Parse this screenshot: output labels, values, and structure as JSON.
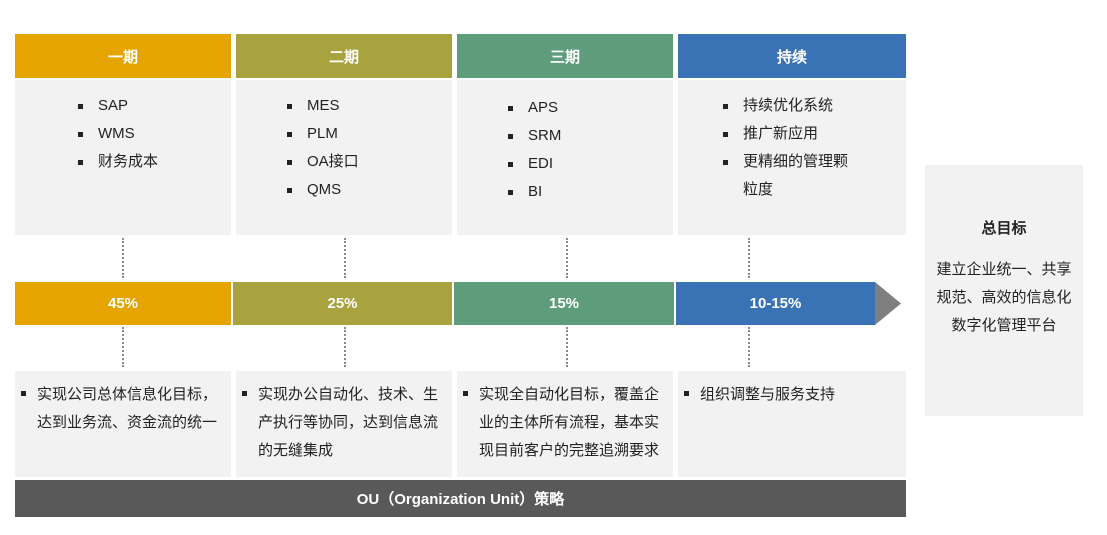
{
  "colors": {
    "p1": "#e6a400",
    "p2": "#a8a23f",
    "p3": "#5f9c7c",
    "p4": "#3a73b5",
    "panel": "#f2f2f2",
    "footer": "#595959",
    "arrow": "#7f7f7f"
  },
  "phases": [
    {
      "title": "一期",
      "items": [
        "SAP",
        "WMS",
        "财务成本"
      ],
      "pct": "45%",
      "desc": "实现公司总体信息化目标，达到业务流、资金流的统一"
    },
    {
      "title": "二期",
      "items": [
        "MES",
        "PLM",
        "OA接口",
        "QMS"
      ],
      "pct": "25%",
      "desc": "实现办公自动化、技术、生产执行等协同，达到信息流的无缝集成"
    },
    {
      "title": "三期",
      "items": [
        "APS",
        "SRM",
        "EDI",
        "BI"
      ],
      "pct": "15%",
      "desc": "实现全自动化目标，覆盖企业的主体所有流程，基本实现目前客户的完整追溯要求"
    },
    {
      "title": "持续",
      "items": [
        "持续优化系统",
        "推广新应用",
        "更精细的管理颗粒度"
      ],
      "pct": "10-15%",
      "desc": "组织调整与服务支持"
    }
  ],
  "footer": "OU（Organization  Unit）策略",
  "goal": {
    "title": "总目标",
    "body": "建立企业统一、共享规范、高效的信息化数字化管理平台"
  }
}
